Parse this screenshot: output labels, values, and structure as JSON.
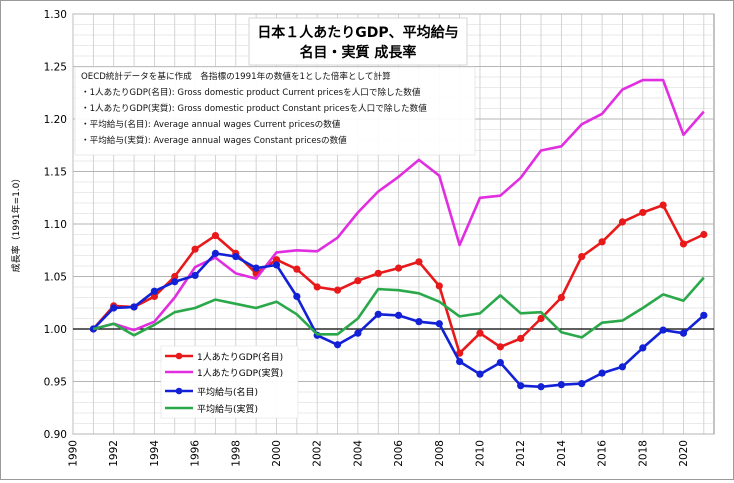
{
  "chart_data": {
    "type": "line",
    "title_line1": "日本１人あたりGDP、平均給与",
    "title_line2": "名目・実質 成長率",
    "notes": [
      "OECD統計データを基に作成　各指標の1991年の数値を1とした倍率として計算",
      "・1人あたりGDP(名目): Gross domestic product Current pricesを人口で除した数値",
      "・1人あたりGDP(実質): Gross domestic product Constant pricesを人口で除した数値",
      "・平均給与(名目): Average annual wages Current pricesの数値",
      "・平均給与(実質): Average annual wages Constant pricesの数値"
    ],
    "ylabel": "成長率（1991年=1.0）",
    "xlabel": "",
    "xlim": [
      1990,
      2021.5
    ],
    "ylim": [
      0.9,
      1.3
    ],
    "y_ticks": [
      "0.90",
      "0.95",
      "1.00",
      "1.05",
      "1.10",
      "1.15",
      "1.20",
      "1.25",
      "1.30"
    ],
    "x_ticks": [
      "1990",
      "1992",
      "1994",
      "1996",
      "1998",
      "2000",
      "2002",
      "2004",
      "2006",
      "2008",
      "2010",
      "2012",
      "2014",
      "2016",
      "2018",
      "2020"
    ],
    "grid": true,
    "legend_position": "bottom-left",
    "x": [
      1991,
      1992,
      1993,
      1994,
      1995,
      1996,
      1997,
      1998,
      1999,
      2000,
      2001,
      2002,
      2003,
      2004,
      2005,
      2006,
      2007,
      2008,
      2009,
      2010,
      2011,
      2012,
      2013,
      2014,
      2015,
      2016,
      2017,
      2018,
      2019,
      2020,
      2021
    ],
    "series": [
      {
        "name": "1人あたりGDP(名目)",
        "color": "#e8191b",
        "marker": true,
        "values": [
          1.0,
          1.022,
          1.021,
          1.031,
          1.05,
          1.076,
          1.089,
          1.072,
          1.053,
          1.066,
          1.057,
          1.04,
          1.037,
          1.046,
          1.053,
          1.058,
          1.064,
          1.041,
          0.977,
          0.996,
          0.983,
          0.991,
          1.01,
          1.03,
          1.069,
          1.083,
          1.102,
          1.111,
          1.118,
          1.081,
          1.09
        ]
      },
      {
        "name": "1人あたりGDP(実質)",
        "color": "#e02ee0",
        "marker": false,
        "values": [
          1.0,
          1.005,
          0.999,
          1.007,
          1.03,
          1.059,
          1.068,
          1.053,
          1.048,
          1.073,
          1.075,
          1.074,
          1.087,
          1.111,
          1.131,
          1.145,
          1.161,
          1.146,
          1.08,
          1.125,
          1.127,
          1.144,
          1.17,
          1.174,
          1.195,
          1.205,
          1.228,
          1.237,
          1.237,
          1.185,
          1.207
        ]
      },
      {
        "name": "平均給与(名目)",
        "color": "#1221d6",
        "marker": true,
        "values": [
          1.0,
          1.02,
          1.021,
          1.036,
          1.045,
          1.051,
          1.072,
          1.069,
          1.058,
          1.061,
          1.031,
          0.994,
          0.985,
          0.996,
          1.014,
          1.013,
          1.007,
          1.005,
          0.969,
          0.957,
          0.968,
          0.946,
          0.945,
          0.947,
          0.948,
          0.958,
          0.964,
          0.982,
          0.999,
          0.996,
          1.013
        ]
      },
      {
        "name": "平均給与(実質)",
        "color": "#2aa84a",
        "marker": false,
        "values": [
          1.0,
          1.005,
          0.994,
          1.004,
          1.016,
          1.02,
          1.028,
          1.024,
          1.02,
          1.026,
          1.014,
          0.995,
          0.995,
          1.01,
          1.038,
          1.037,
          1.034,
          1.026,
          1.012,
          1.015,
          1.032,
          1.015,
          1.016,
          0.997,
          0.992,
          1.006,
          1.008,
          1.02,
          1.033,
          1.027,
          1.049
        ]
      }
    ]
  }
}
